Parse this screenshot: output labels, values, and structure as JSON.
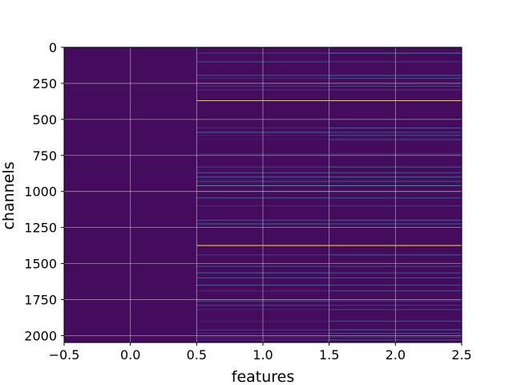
{
  "chart_data": {
    "type": "heatmap",
    "title": "",
    "xlabel": "features",
    "ylabel": "channels",
    "xlim": [
      -0.5,
      2.5
    ],
    "ylim": [
      2048,
      0
    ],
    "y_inverted": true,
    "grid": true,
    "colormap": "viridis",
    "x_ticks": [
      -0.5,
      0.0,
      0.5,
      1.0,
      1.5,
      2.0,
      2.5
    ],
    "x_tick_labels": [
      "−0.5",
      "0.0",
      "0.5",
      "1.0",
      "1.5",
      "2.0",
      "2.5"
    ],
    "y_ticks": [
      0,
      250,
      500,
      750,
      1000,
      1250,
      1500,
      1750,
      2000
    ],
    "y_tick_labels": [
      "0",
      "250",
      "500",
      "750",
      "1000",
      "1250",
      "1500",
      "1750",
      "2000"
    ],
    "columns": [
      0,
      1,
      2
    ],
    "n_channels": 2048,
    "background_value": 0.04,
    "highlights": [
      {
        "channel": 370,
        "values": [
          0.0,
          0.92,
          0.95
        ]
      },
      {
        "channel": 1375,
        "values": [
          0.0,
          1.0,
          1.0
        ]
      },
      {
        "channel": 40,
        "values": [
          0.0,
          0.2,
          0.45
        ]
      },
      {
        "channel": 100,
        "values": [
          0.0,
          0.28,
          0.2
        ]
      },
      {
        "channel": 195,
        "values": [
          0.0,
          0.3,
          0.4
        ]
      },
      {
        "channel": 215,
        "values": [
          0.0,
          0.15,
          0.3
        ]
      },
      {
        "channel": 270,
        "values": [
          0.0,
          0.2,
          0.25
        ]
      },
      {
        "channel": 295,
        "values": [
          0.0,
          0.18,
          0.2
        ]
      },
      {
        "channel": 560,
        "values": [
          0.0,
          0.15,
          0.35
        ]
      },
      {
        "channel": 590,
        "values": [
          0.0,
          0.4,
          0.3
        ]
      },
      {
        "channel": 610,
        "values": [
          0.0,
          0.12,
          0.3
        ]
      },
      {
        "channel": 640,
        "values": [
          0.0,
          0.1,
          0.28
        ]
      },
      {
        "channel": 740,
        "values": [
          0.0,
          0.15,
          0.2
        ]
      },
      {
        "channel": 830,
        "values": [
          0.0,
          0.2,
          0.35
        ]
      },
      {
        "channel": 870,
        "values": [
          0.0,
          0.3,
          0.3
        ]
      },
      {
        "channel": 900,
        "values": [
          0.0,
          0.35,
          0.4
        ]
      },
      {
        "channel": 930,
        "values": [
          0.0,
          0.3,
          0.3
        ]
      },
      {
        "channel": 960,
        "values": [
          0.0,
          0.6,
          0.55
        ]
      },
      {
        "channel": 1000,
        "values": [
          0.0,
          0.25,
          0.25
        ]
      },
      {
        "channel": 1045,
        "values": [
          0.0,
          0.35,
          0.3
        ]
      },
      {
        "channel": 1100,
        "values": [
          0.0,
          0.15,
          0.2
        ]
      },
      {
        "channel": 1200,
        "values": [
          0.0,
          0.3,
          0.35
        ]
      },
      {
        "channel": 1225,
        "values": [
          0.0,
          0.35,
          0.3
        ]
      },
      {
        "channel": 1440,
        "values": [
          0.0,
          0.2,
          0.35
        ]
      },
      {
        "channel": 1520,
        "values": [
          0.0,
          0.3,
          0.25
        ]
      },
      {
        "channel": 1565,
        "values": [
          0.0,
          0.4,
          0.3
        ]
      },
      {
        "channel": 1600,
        "values": [
          0.0,
          0.3,
          0.25
        ]
      },
      {
        "channel": 1650,
        "values": [
          0.0,
          0.35,
          0.3
        ]
      },
      {
        "channel": 1690,
        "values": [
          0.0,
          0.15,
          0.3
        ]
      },
      {
        "channel": 1760,
        "values": [
          0.0,
          0.3,
          0.2
        ]
      },
      {
        "channel": 1790,
        "values": [
          0.0,
          0.25,
          0.2
        ]
      },
      {
        "channel": 1820,
        "values": [
          0.0,
          0.15,
          0.25
        ]
      },
      {
        "channel": 1900,
        "values": [
          0.0,
          0.12,
          0.3
        ]
      },
      {
        "channel": 1960,
        "values": [
          0.0,
          0.2,
          0.35
        ]
      },
      {
        "channel": 1985,
        "values": [
          0.05,
          0.15,
          0.25
        ]
      },
      {
        "channel": 2010,
        "values": [
          0.05,
          0.15,
          0.2
        ]
      },
      {
        "channel": 2030,
        "values": [
          0.0,
          0.15,
          0.25
        ]
      }
    ]
  }
}
